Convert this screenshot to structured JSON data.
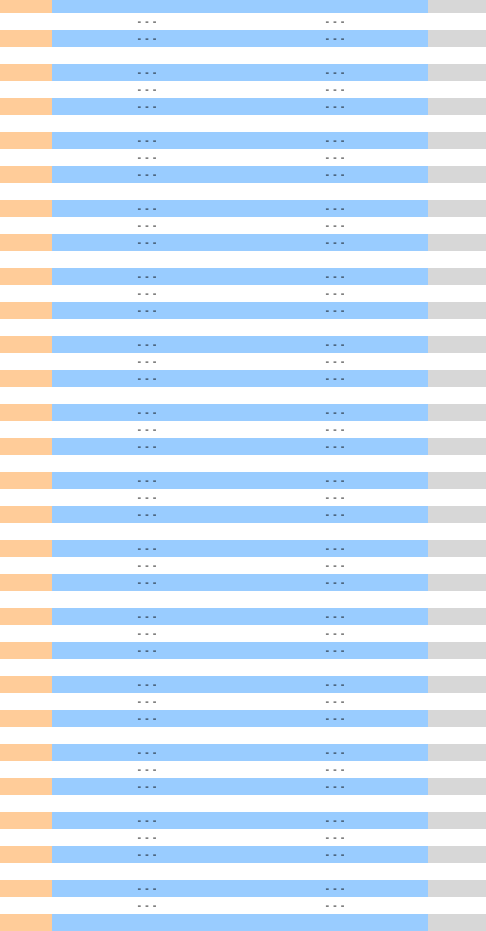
{
  "table": {
    "rows": [
      {
        "pattern": "highlight",
        "v1": "",
        "v2": ""
      },
      {
        "pattern": "plain",
        "v1": "---",
        "v2": "---"
      },
      {
        "pattern": "highlight",
        "v1": "---",
        "v2": "---"
      },
      {
        "pattern": "plain",
        "v1": "",
        "v2": ""
      },
      {
        "pattern": "highlight",
        "v1": "---",
        "v2": "---"
      },
      {
        "pattern": "plain",
        "v1": "---",
        "v2": "---"
      },
      {
        "pattern": "highlight",
        "v1": "---",
        "v2": "---"
      },
      {
        "pattern": "plain",
        "v1": "",
        "v2": ""
      },
      {
        "pattern": "highlight",
        "v1": "---",
        "v2": "---"
      },
      {
        "pattern": "plain",
        "v1": "---",
        "v2": "---"
      },
      {
        "pattern": "highlight",
        "v1": "---",
        "v2": "---"
      },
      {
        "pattern": "plain",
        "v1": "",
        "v2": ""
      },
      {
        "pattern": "highlight",
        "v1": "---",
        "v2": "---"
      },
      {
        "pattern": "plain",
        "v1": "---",
        "v2": "---"
      },
      {
        "pattern": "highlight",
        "v1": "---",
        "v2": "---"
      },
      {
        "pattern": "plain",
        "v1": "",
        "v2": ""
      },
      {
        "pattern": "highlight",
        "v1": "---",
        "v2": "---"
      },
      {
        "pattern": "plain",
        "v1": "---",
        "v2": "---"
      },
      {
        "pattern": "highlight",
        "v1": "---",
        "v2": "---"
      },
      {
        "pattern": "plain",
        "v1": "",
        "v2": ""
      },
      {
        "pattern": "highlight",
        "v1": "---",
        "v2": "---"
      },
      {
        "pattern": "plain",
        "v1": "---",
        "v2": "---"
      },
      {
        "pattern": "highlight",
        "v1": "---",
        "v2": "---"
      },
      {
        "pattern": "plain",
        "v1": "",
        "v2": ""
      },
      {
        "pattern": "highlight",
        "v1": "---",
        "v2": "---"
      },
      {
        "pattern": "plain",
        "v1": "---",
        "v2": "---"
      },
      {
        "pattern": "highlight",
        "v1": "---",
        "v2": "---"
      },
      {
        "pattern": "plain",
        "v1": "",
        "v2": ""
      },
      {
        "pattern": "highlight",
        "v1": "---",
        "v2": "---"
      },
      {
        "pattern": "plain",
        "v1": "---",
        "v2": "---"
      },
      {
        "pattern": "highlight",
        "v1": "---",
        "v2": "---"
      },
      {
        "pattern": "plain",
        "v1": "",
        "v2": ""
      },
      {
        "pattern": "highlight",
        "v1": "---",
        "v2": "---"
      },
      {
        "pattern": "plain",
        "v1": "---",
        "v2": "---"
      },
      {
        "pattern": "highlight",
        "v1": "---",
        "v2": "---"
      },
      {
        "pattern": "plain",
        "v1": "",
        "v2": ""
      },
      {
        "pattern": "highlight",
        "v1": "---",
        "v2": "---"
      },
      {
        "pattern": "plain",
        "v1": "---",
        "v2": "---"
      },
      {
        "pattern": "highlight",
        "v1": "---",
        "v2": "---"
      },
      {
        "pattern": "plain",
        "v1": "",
        "v2": ""
      },
      {
        "pattern": "highlight",
        "v1": "---",
        "v2": "---"
      },
      {
        "pattern": "plain",
        "v1": "---",
        "v2": "---"
      },
      {
        "pattern": "highlight",
        "v1": "---",
        "v2": "---"
      },
      {
        "pattern": "plain",
        "v1": "",
        "v2": ""
      },
      {
        "pattern": "highlight",
        "v1": "---",
        "v2": "---"
      },
      {
        "pattern": "plain",
        "v1": "---",
        "v2": "---"
      },
      {
        "pattern": "highlight",
        "v1": "---",
        "v2": "---"
      },
      {
        "pattern": "plain",
        "v1": "",
        "v2": ""
      },
      {
        "pattern": "highlight",
        "v1": "---",
        "v2": "---"
      },
      {
        "pattern": "plain",
        "v1": "---",
        "v2": "---"
      },
      {
        "pattern": "highlight",
        "v1": "---",
        "v2": "---"
      },
      {
        "pattern": "plain",
        "v1": "",
        "v2": ""
      },
      {
        "pattern": "highlight",
        "v1": "---",
        "v2": "---"
      },
      {
        "pattern": "plain",
        "v1": "---",
        "v2": "---"
      },
      {
        "pattern": "highlight",
        "v1": "",
        "v2": ""
      }
    ],
    "colors": {
      "left_highlight": "#ffcc99",
      "middle_highlight": "#99ccff",
      "right_highlight": "#d7d7d7"
    }
  }
}
